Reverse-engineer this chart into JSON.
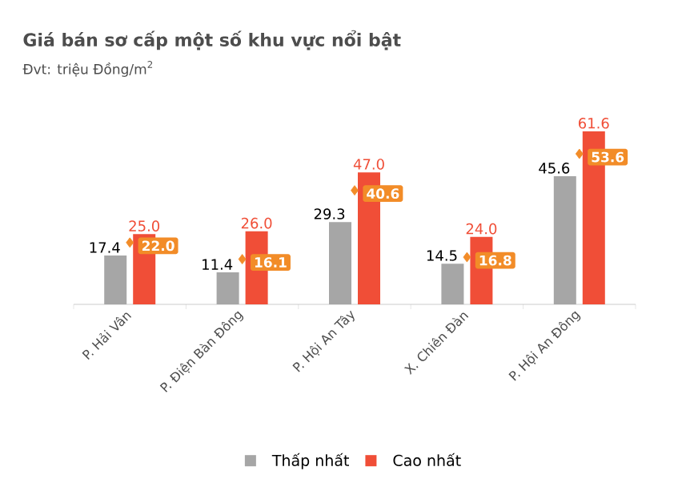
{
  "chart_data": {
    "type": "bar",
    "title": "Giá bán sơ cấp một số khu vực nổi bật",
    "subtitle": "Đvt: triệu Đồng/m$^{2}$",
    "categories": [
      "P. Hải Vân",
      "P. Điện Bàn Đông",
      "P. Hội An Tây",
      "X. Chiên Đàn",
      "P. Hội An Đông"
    ],
    "series": [
      {
        "name": "Thấp nhất",
        "color": "#a6a6a6",
        "values": [
          17.4,
          11.4,
          29.3,
          14.5,
          45.6
        ],
        "value_labels": [
          "17.4",
          "11.4",
          "29.3",
          "14.5",
          "45.6"
        ]
      },
      {
        "name": "Cao nhất",
        "color": "#f04e37",
        "values": [
          25.0,
          26.0,
          47.0,
          24.0,
          61.6
        ],
        "value_labels": [
          "25.0",
          "26.0",
          "47.0",
          "24.0",
          "61.6"
        ]
      },
      {
        "type": "scatter",
        "marker": "diamond",
        "color": "#f28c28",
        "values": [
          22.0,
          16.1,
          40.6,
          16.8,
          53.6
        ],
        "value_labels": [
          "22.0",
          "16.1",
          "40.6",
          "16.8",
          "53.6"
        ]
      }
    ],
    "legend": "bottom",
    "grid": false
  }
}
